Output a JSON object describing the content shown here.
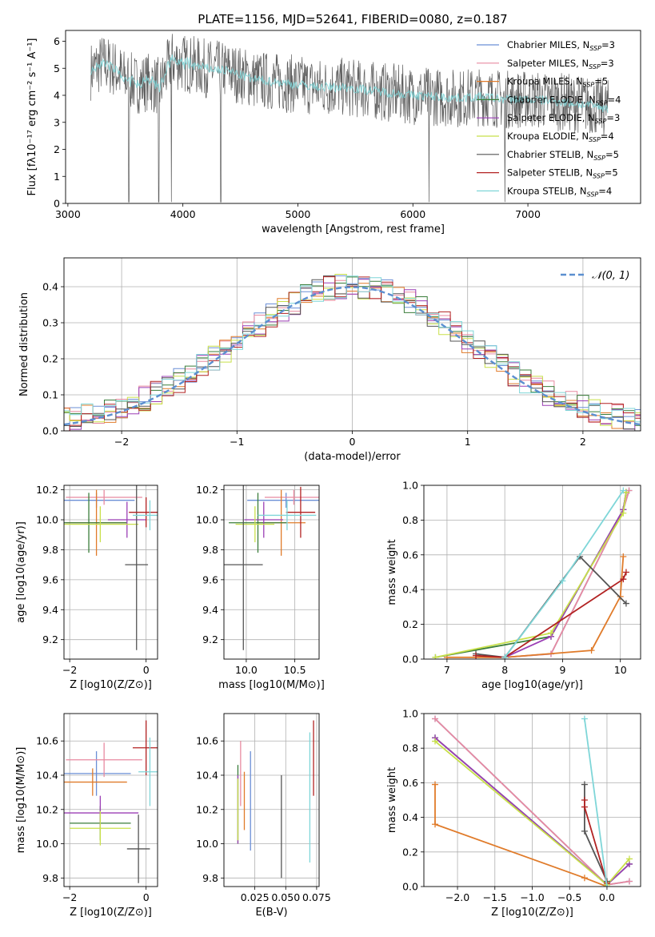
{
  "title": "PLATE=1156, MJD=52641, FIBERID=0080, z=0.187",
  "models": [
    {
      "name": "Chabrier MILES",
      "nssp": "3",
      "color": "#6b8fd6"
    },
    {
      "name": "Salpeter MILES",
      "nssp": "3",
      "color": "#e88aa0"
    },
    {
      "name": "Kroupa MILES",
      "nssp": "5",
      "color": "#e07b2a"
    },
    {
      "name": "Chabrier ELODIE",
      "nssp": "4",
      "color": "#3a7d3a"
    },
    {
      "name": "Salpeter ELODIE",
      "nssp": "3",
      "color": "#9b3fb5"
    },
    {
      "name": "Kroupa ELODIE",
      "nssp": "4",
      "color": "#c8e04a"
    },
    {
      "name": "Chabrier STELIB",
      "nssp": "5",
      "color": "#555555"
    },
    {
      "name": "Salpeter STELIB",
      "nssp": "5",
      "color": "#b22222"
    },
    {
      "name": "Kroupa STELIB",
      "nssp": "4",
      "color": "#7fd6d8"
    }
  ],
  "legend_nssp_prefix": "N",
  "legend_nssp_sub": "SSP",
  "chart_data": [
    {
      "id": "spectrum",
      "type": "line",
      "xlabel": "wavelength [Angstrom, rest frame]",
      "ylabel": "Flux [fλ10⁻¹⁷ erg cm⁻² s⁻¹ A⁻¹]",
      "xlim": [
        2980,
        7980
      ],
      "ylim": [
        0,
        6.4
      ],
      "xticks": [
        3000,
        4000,
        5000,
        6000,
        7000
      ],
      "yticks": [
        0,
        1,
        2,
        3,
        4,
        5,
        6
      ],
      "data_range": [
        3200,
        7700
      ],
      "continuum": [
        [
          3200,
          4.9
        ],
        [
          3300,
          5.2
        ],
        [
          3400,
          5.0
        ],
        [
          3500,
          4.6
        ],
        [
          3600,
          4.4
        ],
        [
          3700,
          4.5
        ],
        [
          3800,
          4.3
        ],
        [
          3900,
          5.3
        ],
        [
          4000,
          5.2
        ],
        [
          4200,
          5.0
        ],
        [
          4400,
          4.9
        ],
        [
          4600,
          4.6
        ],
        [
          4800,
          4.5
        ],
        [
          5000,
          4.4
        ],
        [
          5200,
          4.3
        ],
        [
          5400,
          4.3
        ],
        [
          5600,
          4.2
        ],
        [
          5800,
          4.1
        ],
        [
          6000,
          4.0
        ],
        [
          6200,
          3.95
        ],
        [
          6400,
          3.9
        ],
        [
          6600,
          3.95
        ],
        [
          6800,
          3.85
        ],
        [
          7000,
          3.85
        ],
        [
          7200,
          3.8
        ],
        [
          7400,
          3.7
        ],
        [
          7600,
          3.6
        ],
        [
          7700,
          3.5
        ]
      ],
      "noise_amplitude": 1.0,
      "drops": [
        3530,
        3790,
        3900,
        4330,
        6140,
        6800
      ],
      "grid": false,
      "legend": "upper right"
    },
    {
      "id": "residuals",
      "type": "histogram",
      "xlabel": "(data-model)/error",
      "ylabel": "Normed distribution",
      "xlim": [
        -2.5,
        2.5
      ],
      "ylim": [
        0,
        0.48
      ],
      "xticks": [
        -2,
        -1,
        0,
        1,
        2
      ],
      "yticks": [
        0.0,
        0.1,
        0.2,
        0.3,
        0.4
      ],
      "bin_width": 0.1,
      "reference_label": "𝒩(0, 1)",
      "reference_color": "#5b8fd0",
      "grid": true,
      "legend": "upper right"
    },
    {
      "id": "age-vs-z",
      "type": "errorbar",
      "xlabel": "Z [log10(Z/Z⊙)]",
      "ylabel": "age  [log10(age/yr)]",
      "xlim": [
        -2.15,
        0.3
      ],
      "ylim": [
        9.07,
        10.23
      ],
      "xticks": [
        -2,
        0
      ],
      "yticks": [
        9.2,
        9.4,
        9.6,
        9.8,
        10.0,
        10.2
      ],
      "points": [
        {
          "x": -1.3,
          "y": 10.13,
          "xerr": 1.0,
          "yerr": 0.05
        },
        {
          "x": -1.1,
          "y": 10.15,
          "xerr": 1.0,
          "yerr": 0.05
        },
        {
          "x": -1.3,
          "y": 9.98,
          "xerr": 0.8,
          "yerr": 0.22
        },
        {
          "x": -1.5,
          "y": 9.98,
          "xerr": 1.0,
          "yerr": 0.2
        },
        {
          "x": -0.5,
          "y": 10.0,
          "xerr": 0.5,
          "yerr": 0.12
        },
        {
          "x": -1.2,
          "y": 9.97,
          "xerr": 1.0,
          "yerr": 0.12
        },
        {
          "x": -0.25,
          "y": 9.7,
          "xerr": 0.3,
          "yerr": 0.57
        },
        {
          "x": 0.0,
          "y": 10.05,
          "xerr": 0.45,
          "yerr": 0.1
        },
        {
          "x": 0.1,
          "y": 10.03,
          "xerr": 0.45,
          "yerr": 0.1
        }
      ],
      "grid": true
    },
    {
      "id": "age-vs-mass",
      "type": "errorbar",
      "xlabel": "mass [log10(M/M⊙)]",
      "ylabel": "",
      "xlim": [
        9.77,
        10.75
      ],
      "ylim": [
        9.07,
        10.23
      ],
      "xticks": [
        10.0,
        10.5
      ],
      "yticks": [
        9.2,
        9.4,
        9.6,
        9.8,
        10.0,
        10.2
      ],
      "points": [
        {
          "x": 10.41,
          "y": 10.13,
          "xerr": 0.4,
          "yerr": 0.05
        },
        {
          "x": 10.49,
          "y": 10.15,
          "xerr": 0.3,
          "yerr": 0.05
        },
        {
          "x": 10.36,
          "y": 9.98,
          "xerr": 0.25,
          "yerr": 0.22
        },
        {
          "x": 10.12,
          "y": 9.98,
          "xerr": 0.3,
          "yerr": 0.2
        },
        {
          "x": 10.18,
          "y": 10.0,
          "xerr": 0.2,
          "yerr": 0.12
        },
        {
          "x": 10.09,
          "y": 9.97,
          "xerr": 0.2,
          "yerr": 0.12
        },
        {
          "x": 9.97,
          "y": 9.7,
          "xerr": 0.2,
          "yerr": 0.57
        },
        {
          "x": 10.56,
          "y": 10.05,
          "xerr": 0.15,
          "yerr": 0.17
        },
        {
          "x": 10.42,
          "y": 10.03,
          "xerr": 0.3,
          "yerr": 0.1
        }
      ],
      "grid": true
    },
    {
      "id": "weight-vs-age",
      "type": "line",
      "xlabel": "age  [log10(age/yr)]",
      "ylabel": "mass weight",
      "xlim": [
        6.6,
        10.35
      ],
      "ylim": [
        0,
        1.0
      ],
      "xticks": [
        7,
        8,
        9,
        10
      ],
      "yticks": [
        0.0,
        0.2,
        0.4,
        0.6,
        0.8,
        1.0
      ],
      "series": [
        [
          [
            8.0,
            0.01
          ],
          [
            8.8,
            0.03
          ],
          [
            10.05,
            0.86
          ],
          [
            10.15,
            0.97
          ]
        ],
        [
          [
            8.0,
            0.01
          ],
          [
            8.8,
            0.03
          ],
          [
            10.05,
            0.86
          ],
          [
            10.15,
            0.97
          ]
        ],
        [
          [
            7.0,
            0.01
          ],
          [
            8.0,
            0.01
          ],
          [
            9.5,
            0.05
          ],
          [
            10.0,
            0.36
          ],
          [
            10.05,
            0.59
          ]
        ],
        [
          [
            6.8,
            0.01
          ],
          [
            8.8,
            0.13
          ],
          [
            10.05,
            0.86
          ],
          [
            10.1,
            0.96
          ]
        ],
        [
          [
            8.0,
            0.01
          ],
          [
            8.8,
            0.13
          ],
          [
            10.05,
            0.86
          ],
          [
            10.1,
            0.96
          ]
        ],
        [
          [
            6.8,
            0.01
          ],
          [
            8.8,
            0.15
          ],
          [
            10.05,
            0.84
          ],
          [
            10.1,
            0.96
          ]
        ],
        [
          [
            7.5,
            0.03
          ],
          [
            8.0,
            0.01
          ],
          [
            9.3,
            0.59
          ],
          [
            10.1,
            0.32
          ]
        ],
        [
          [
            7.5,
            0.02
          ],
          [
            8.0,
            0.01
          ],
          [
            10.05,
            0.46
          ],
          [
            10.1,
            0.5
          ]
        ],
        [
          [
            8.0,
            0.01
          ],
          [
            9.0,
            0.45
          ],
          [
            10.05,
            0.97
          ]
        ]
      ],
      "grid": true
    },
    {
      "id": "mass-vs-z",
      "type": "errorbar",
      "xlabel": "Z [log10(Z/Z⊙)]",
      "ylabel": "mass [log10(M/M⊙)]",
      "xlim": [
        -2.15,
        0.3
      ],
      "ylim": [
        9.75,
        10.76
      ],
      "xticks": [
        -2,
        0
      ],
      "yticks": [
        9.8,
        10.0,
        10.2,
        10.4,
        10.6
      ],
      "points": [
        {
          "x": -1.3,
          "y": 10.41,
          "xerr": 0.9,
          "yerr": 0.13
        },
        {
          "x": -1.1,
          "y": 10.49,
          "xerr": 1.0,
          "yerr": 0.1
        },
        {
          "x": -1.4,
          "y": 10.36,
          "xerr": 0.9,
          "yerr": 0.08
        },
        {
          "x": -1.2,
          "y": 10.12,
          "xerr": 0.8,
          "yerr": 0.1
        },
        {
          "x": -1.2,
          "y": 10.18,
          "xerr": 1.0,
          "yerr": 0.1
        },
        {
          "x": -1.2,
          "y": 10.09,
          "xerr": 0.8,
          "yerr": 0.1
        },
        {
          "x": -0.2,
          "y": 9.97,
          "xerr": 0.3,
          "yerr": 0.2
        },
        {
          "x": 0.0,
          "y": 10.56,
          "xerr": 0.35,
          "yerr": 0.16
        },
        {
          "x": 0.1,
          "y": 10.42,
          "xerr": 0.3,
          "yerr": 0.2
        }
      ],
      "grid": true
    },
    {
      "id": "mass-vs-ebv",
      "type": "errorbar",
      "xlabel": "E(B-V)",
      "ylabel": "",
      "xlim": [
        0.0,
        0.077
      ],
      "ylim": [
        9.75,
        10.76
      ],
      "xticks": [
        0.025,
        0.05,
        0.075
      ],
      "yticks": [
        9.8,
        10.0,
        10.2,
        10.4,
        10.6
      ],
      "points": [
        {
          "x": 0.0215,
          "y": 10.25,
          "xerr": 0,
          "yerr": 0.29
        },
        {
          "x": 0.0135,
          "y": 10.41,
          "xerr": 0,
          "yerr": 0.19
        },
        {
          "x": 0.0165,
          "y": 10.25,
          "xerr": 0,
          "yerr": 0.17
        },
        {
          "x": 0.0113,
          "y": 10.23,
          "xerr": 0,
          "yerr": 0.23
        },
        {
          "x": 0.0113,
          "y": 10.2,
          "xerr": 0,
          "yerr": 0.2
        },
        {
          "x": 0.0113,
          "y": 10.2,
          "xerr": 0,
          "yerr": 0.18
        },
        {
          "x": 0.0465,
          "y": 10.1,
          "xerr": 0,
          "yerr": 0.3
        },
        {
          "x": 0.0725,
          "y": 10.5,
          "xerr": 0,
          "yerr": 0.22
        },
        {
          "x": 0.0695,
          "y": 10.27,
          "xerr": 0,
          "yerr": 0.38
        }
      ],
      "grid": true
    },
    {
      "id": "weight-vs-z",
      "type": "line",
      "xlabel": "Z [log10(Z/Z⊙)]",
      "ylabel": "mass weight",
      "xlim": [
        -2.45,
        0.45
      ],
      "ylim": [
        0,
        1.0
      ],
      "xticks": [
        -2.0,
        -1.5,
        -1.0,
        -0.5,
        0.0
      ],
      "yticks": [
        0.0,
        0.2,
        0.4,
        0.6,
        0.8,
        1.0
      ],
      "series": [
        [
          [
            -2.3,
            0.97
          ],
          [
            0.0,
            0.01
          ],
          [
            0.3,
            0.03
          ]
        ],
        [
          [
            -2.3,
            0.97
          ],
          [
            0.0,
            0.01
          ],
          [
            0.3,
            0.03
          ]
        ],
        [
          [
            -2.3,
            0.59
          ],
          [
            -2.3,
            0.36
          ],
          [
            -0.3,
            0.05
          ],
          [
            0.0,
            0.0
          ]
        ],
        [
          [
            -2.3,
            0.86
          ],
          [
            0.0,
            0.01
          ],
          [
            0.3,
            0.13
          ]
        ],
        [
          [
            -2.3,
            0.86
          ],
          [
            0.0,
            0.01
          ],
          [
            0.3,
            0.13
          ]
        ],
        [
          [
            -2.3,
            0.84
          ],
          [
            0.0,
            0.01
          ],
          [
            0.3,
            0.16
          ]
        ],
        [
          [
            -0.3,
            0.59
          ],
          [
            -0.3,
            0.32
          ],
          [
            0.0,
            0.03
          ]
        ],
        [
          [
            -0.3,
            0.5
          ],
          [
            -0.3,
            0.46
          ],
          [
            0.0,
            0.02
          ]
        ],
        [
          [
            -0.3,
            0.97
          ],
          [
            0.0,
            0.0
          ]
        ]
      ],
      "grid": true
    }
  ]
}
